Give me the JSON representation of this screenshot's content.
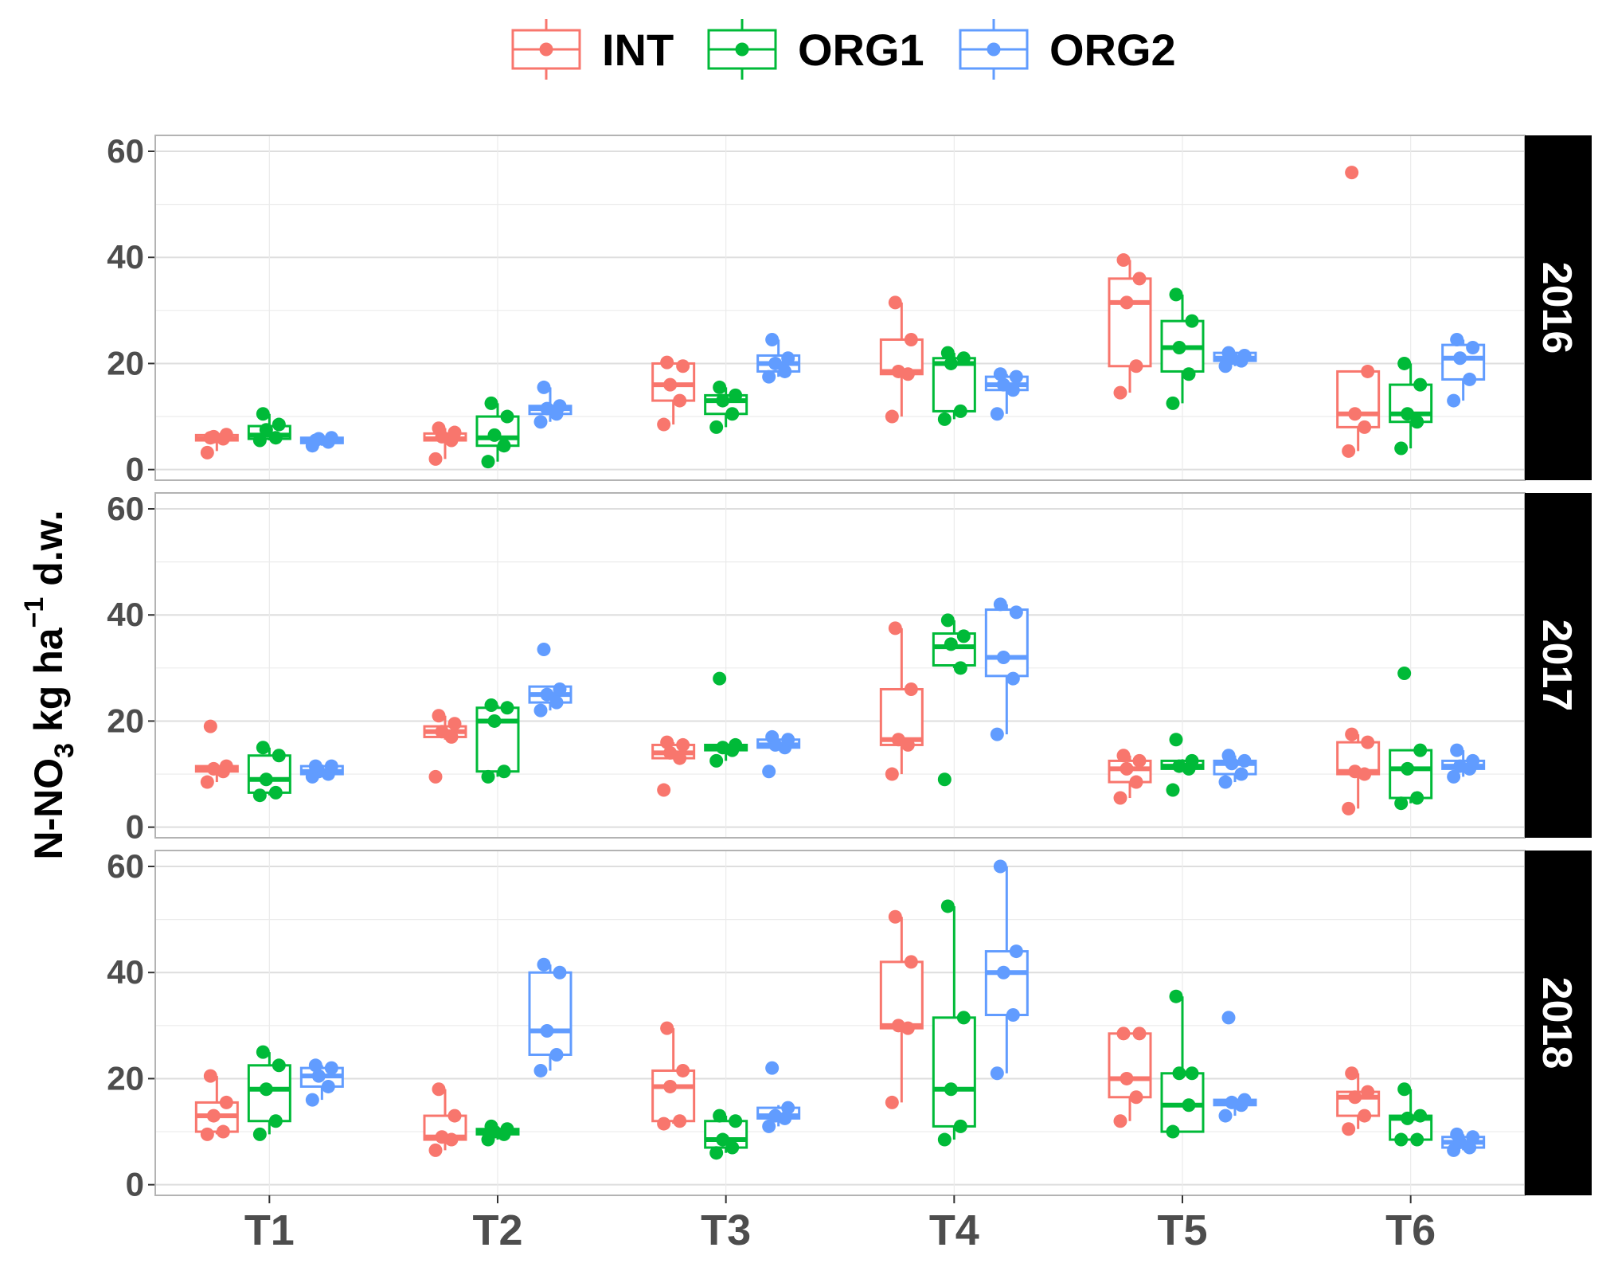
{
  "chart_data": {
    "type": "box",
    "ylabel": {
      "main": "N-NO",
      "sub": "3",
      "unit": " kg ha",
      "sup": "−1",
      "suffix": " d.w."
    },
    "categories": [
      "T1",
      "T2",
      "T3",
      "T4",
      "T5",
      "T6"
    ],
    "ylim": [
      -2,
      63
    ],
    "yticks": [
      0,
      20,
      40,
      60
    ],
    "ytick_labels": [
      "0",
      "20",
      "40",
      "60"
    ],
    "series": [
      {
        "name": "INT",
        "color": "#F8766D"
      },
      {
        "name": "ORG1",
        "color": "#00BA38"
      },
      {
        "name": "ORG2",
        "color": "#619CFF"
      }
    ],
    "panels": [
      {
        "label": "2016",
        "groups": [
          [
            {
              "box": [
                5.5,
                5.8,
                6.5,
                3.5,
                6.8
              ],
              "points": [
                3.2,
                5.8,
                6.2,
                6.6,
                6.0
              ]
            },
            {
              "box": [
                5.8,
                6.5,
                8.2,
                5.5,
                10.5
              ],
              "points": [
                5.5,
                6.0,
                7.5,
                8.5,
                10.5
              ]
            },
            {
              "box": [
                5.0,
                5.5,
                6.0,
                4.5,
                6.2
              ],
              "points": [
                4.5,
                5.2,
                5.8,
                6.0,
                5.5
              ]
            }
          ],
          [
            {
              "box": [
                5.5,
                5.8,
                6.8,
                2.0,
                7.8
              ],
              "points": [
                2.0,
                5.5,
                6.2,
                7.0,
                7.8
              ]
            },
            {
              "box": [
                4.5,
                6.0,
                10.0,
                1.5,
                12.5
              ],
              "points": [
                1.5,
                4.5,
                6.5,
                10.0,
                12.5
              ]
            },
            {
              "box": [
                10.5,
                11.5,
                12.0,
                9.0,
                15.5
              ],
              "points": [
                9.0,
                10.5,
                11.5,
                12.0,
                15.5
              ]
            }
          ],
          [
            {
              "box": [
                13.0,
                16.0,
                20.0,
                8.5,
                20.2
              ],
              "points": [
                8.5,
                13.0,
                16.0,
                19.5,
                20.2
              ]
            },
            {
              "box": [
                10.5,
                13.0,
                14.0,
                8.0,
                15.5
              ],
              "points": [
                8.0,
                10.5,
                13.0,
                14.0,
                15.5
              ]
            },
            {
              "box": [
                18.5,
                20.0,
                21.5,
                17.5,
                24.5
              ],
              "points": [
                17.5,
                18.5,
                20.0,
                21.0,
                24.5
              ]
            }
          ],
          [
            {
              "box": [
                18.0,
                18.5,
                24.5,
                10.0,
                31.5
              ],
              "points": [
                10.0,
                18.0,
                18.5,
                24.5,
                31.5
              ]
            },
            {
              "box": [
                11.0,
                20.0,
                21.0,
                9.5,
                22.0
              ],
              "points": [
                9.5,
                11.0,
                20.0,
                21.0,
                22.0
              ]
            },
            {
              "box": [
                15.0,
                16.0,
                17.5,
                10.5,
                18.0
              ],
              "points": [
                10.5,
                15.0,
                16.0,
                17.5,
                18.0
              ]
            }
          ],
          [
            {
              "box": [
                19.5,
                31.5,
                36.0,
                14.5,
                39.5
              ],
              "points": [
                14.5,
                19.5,
                31.5,
                36.0,
                39.5
              ]
            },
            {
              "box": [
                18.5,
                23.0,
                28.0,
                12.5,
                33.0
              ],
              "points": [
                12.5,
                18.0,
                23.0,
                28.0,
                33.0
              ]
            },
            {
              "box": [
                20.5,
                21.0,
                22.0,
                19.5,
                22.0
              ],
              "points": [
                19.5,
                20.5,
                21.0,
                21.5,
                22.0
              ]
            }
          ],
          [
            {
              "box": [
                8.0,
                10.5,
                18.5,
                3.5,
                18.5
              ],
              "points": [
                3.5,
                8.0,
                10.5,
                18.5,
                56.0
              ]
            },
            {
              "box": [
                9.0,
                10.5,
                16.0,
                4.0,
                20.0
              ],
              "points": [
                4.0,
                9.0,
                10.5,
                16.0,
                20.0
              ]
            },
            {
              "box": [
                17.0,
                21.0,
                23.5,
                13.0,
                24.5
              ],
              "points": [
                13.0,
                17.0,
                21.0,
                23.0,
                24.5
              ]
            }
          ]
        ]
      },
      {
        "label": "2017",
        "groups": [
          [
            {
              "box": [
                10.5,
                11.0,
                11.5,
                8.5,
                11.8
              ],
              "points": [
                8.5,
                10.5,
                11.0,
                11.5,
                19.0
              ]
            },
            {
              "box": [
                6.5,
                9.0,
                13.5,
                6.0,
                15.0
              ],
              "points": [
                6.0,
                6.5,
                9.0,
                13.5,
                15.0
              ]
            },
            {
              "box": [
                10.0,
                10.5,
                11.5,
                9.5,
                11.8
              ],
              "points": [
                9.5,
                10.0,
                10.5,
                11.5,
                11.5
              ]
            }
          ],
          [
            {
              "box": [
                17.0,
                18.0,
                19.0,
                16.5,
                21.0
              ],
              "points": [
                9.5,
                17.0,
                18.0,
                19.5,
                21.0
              ]
            },
            {
              "box": [
                10.5,
                20.0,
                22.5,
                9.5,
                23.0
              ],
              "points": [
                9.5,
                10.5,
                20.0,
                22.5,
                23.0
              ]
            },
            {
              "box": [
                23.5,
                25.0,
                26.5,
                22.0,
                26.5
              ],
              "points": [
                22.0,
                23.5,
                25.0,
                26.0,
                33.5
              ]
            }
          ],
          [
            {
              "box": [
                13.0,
                14.0,
                15.5,
                13.0,
                16.0
              ],
              "points": [
                7.0,
                13.0,
                14.0,
                15.5,
                16.0
              ]
            },
            {
              "box": [
                14.5,
                15.0,
                15.5,
                12.5,
                16.0
              ],
              "points": [
                12.5,
                14.5,
                15.0,
                15.5,
                28.0
              ]
            },
            {
              "box": [
                15.0,
                15.5,
                16.5,
                14.5,
                16.5
              ],
              "points": [
                10.5,
                15.0,
                15.5,
                16.5,
                17.0
              ]
            }
          ],
          [
            {
              "box": [
                15.5,
                16.5,
                26.0,
                10.0,
                37.5
              ],
              "points": [
                10.0,
                15.5,
                16.5,
                26.0,
                37.5
              ]
            },
            {
              "box": [
                30.5,
                34.0,
                36.5,
                30.0,
                39.0
              ],
              "points": [
                9.0,
                30.0,
                34.5,
                36.0,
                39.0
              ]
            },
            {
              "box": [
                28.5,
                32.0,
                41.0,
                17.5,
                42.0
              ],
              "points": [
                17.5,
                28.0,
                32.0,
                40.5,
                42.0
              ]
            }
          ],
          [
            {
              "box": [
                8.5,
                11.0,
                12.5,
                5.5,
                13.5
              ],
              "points": [
                5.5,
                8.5,
                11.0,
                12.5,
                13.5
              ]
            },
            {
              "box": [
                11.0,
                11.5,
                12.5,
                11.0,
                12.8
              ],
              "points": [
                7.0,
                11.0,
                11.5,
                12.5,
                16.5
              ]
            },
            {
              "box": [
                10.0,
                12.0,
                12.5,
                8.5,
                13.5
              ],
              "points": [
                8.5,
                10.0,
                12.0,
                12.5,
                13.5
              ]
            }
          ],
          [
            {
              "box": [
                10.0,
                10.5,
                16.0,
                3.5,
                17.5
              ],
              "points": [
                3.5,
                10.0,
                10.5,
                16.0,
                17.5
              ]
            },
            {
              "box": [
                5.5,
                11.0,
                14.5,
                4.5,
                14.5
              ],
              "points": [
                4.5,
                5.5,
                11.0,
                14.5,
                29.0
              ]
            },
            {
              "box": [
                11.0,
                11.5,
                12.5,
                9.5,
                14.5
              ],
              "points": [
                9.5,
                11.0,
                11.5,
                12.5,
                14.5
              ]
            }
          ]
        ]
      },
      {
        "label": "2018",
        "groups": [
          [
            {
              "box": [
                10.0,
                13.0,
                15.5,
                9.5,
                20.5
              ],
              "points": [
                9.5,
                10.0,
                13.0,
                15.5,
                20.5
              ]
            },
            {
              "box": [
                12.0,
                18.0,
                22.5,
                9.5,
                25.0
              ],
              "points": [
                9.5,
                12.0,
                18.0,
                22.5,
                25.0
              ]
            },
            {
              "box": [
                18.5,
                20.5,
                22.0,
                16.0,
                22.5
              ],
              "points": [
                16.0,
                18.5,
                20.5,
                22.0,
                22.5
              ]
            }
          ],
          [
            {
              "box": [
                8.5,
                9.0,
                13.0,
                6.5,
                18.0
              ],
              "points": [
                6.5,
                8.5,
                9.0,
                13.0,
                18.0
              ]
            },
            {
              "box": [
                9.5,
                10.0,
                10.5,
                8.5,
                11.0
              ],
              "points": [
                8.5,
                9.5,
                10.0,
                10.5,
                11.0
              ]
            },
            {
              "box": [
                24.5,
                29.0,
                40.0,
                21.5,
                41.5
              ],
              "points": [
                21.5,
                24.5,
                29.0,
                40.0,
                41.5
              ]
            }
          ],
          [
            {
              "box": [
                12.0,
                18.5,
                21.5,
                11.5,
                29.5
              ],
              "points": [
                11.5,
                12.0,
                18.5,
                21.5,
                29.5
              ]
            },
            {
              "box": [
                7.0,
                8.5,
                12.0,
                6.0,
                13.0
              ],
              "points": [
                6.0,
                7.0,
                8.5,
                12.0,
                13.0
              ]
            },
            {
              "box": [
                12.5,
                13.0,
                14.5,
                11.0,
                15.0
              ],
              "points": [
                11.0,
                12.5,
                13.0,
                14.5,
                22.0
              ]
            }
          ],
          [
            {
              "box": [
                29.5,
                30.0,
                42.0,
                15.5,
                50.5
              ],
              "points": [
                15.5,
                29.5,
                30.0,
                42.0,
                50.5
              ]
            },
            {
              "box": [
                11.0,
                18.0,
                31.5,
                8.5,
                52.5
              ],
              "points": [
                8.5,
                11.0,
                18.0,
                31.5,
                52.5
              ]
            },
            {
              "box": [
                32.0,
                40.0,
                44.0,
                21.0,
                60.0
              ],
              "points": [
                21.0,
                32.0,
                40.0,
                44.0,
                60.0
              ]
            }
          ],
          [
            {
              "box": [
                16.5,
                20.0,
                28.5,
                12.0,
                28.5
              ],
              "points": [
                12.0,
                16.5,
                20.0,
                28.5,
                28.5
              ]
            },
            {
              "box": [
                10.0,
                15.0,
                21.0,
                10.0,
                35.5
              ],
              "points": [
                10.0,
                15.0,
                21.0,
                21.0,
                35.5
              ]
            },
            {
              "box": [
                15.0,
                15.5,
                16.0,
                13.0,
                16.5
              ],
              "points": [
                13.0,
                15.0,
                15.5,
                16.0,
                31.5
              ]
            }
          ],
          [
            {
              "box": [
                13.0,
                16.5,
                17.5,
                10.5,
                21.0
              ],
              "points": [
                10.5,
                13.0,
                16.5,
                17.5,
                21.0
              ]
            },
            {
              "box": [
                8.5,
                12.5,
                13.0,
                8.5,
                18.0
              ],
              "points": [
                8.5,
                8.5,
                12.5,
                13.0,
                18.0
              ]
            },
            {
              "box": [
                7.0,
                8.0,
                9.0,
                6.5,
                9.5
              ],
              "points": [
                6.5,
                7.0,
                8.0,
                9.0,
                9.5
              ]
            }
          ]
        ]
      }
    ]
  }
}
